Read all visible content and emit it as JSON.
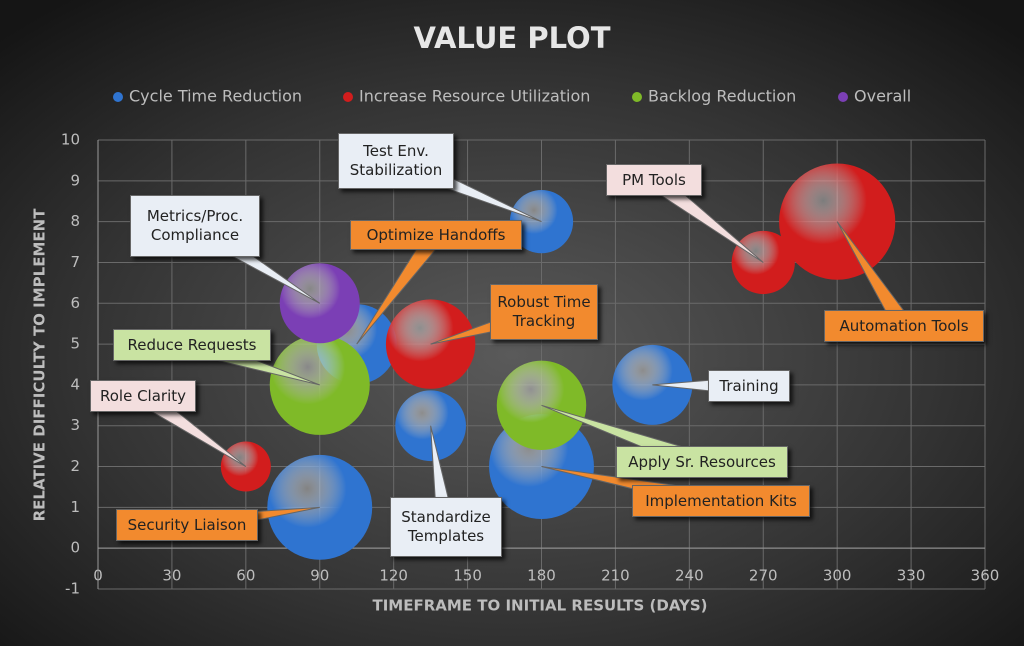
{
  "chart_data": {
    "type": "bubble",
    "title": "VALUE PLOT",
    "x_label": "TIMEFRAME TO INITIAL RESULTS (DAYS)",
    "y_label": "RELATIVE DIFFICULTY TO IMPLEMENT",
    "xlim": [
      0,
      360
    ],
    "xticks": [
      0,
      30,
      60,
      90,
      120,
      150,
      180,
      210,
      240,
      270,
      300,
      330,
      360
    ],
    "ylim": [
      -1,
      10
    ],
    "yticks": [
      -1,
      0,
      1,
      2,
      3,
      4,
      5,
      6,
      7,
      8,
      9,
      10
    ],
    "grid": true,
    "legend": "top",
    "series": [
      {
        "name": "Cycle Time Reduction",
        "color": "#2f74d0",
        "x": [
          180,
          105,
          225,
          135,
          180,
          90
        ],
        "values": [
          8,
          5,
          4,
          3,
          2,
          1
        ],
        "sizes": [
          40,
          64,
          64,
          50,
          110,
          110
        ],
        "labels": [
          "Test Env. Stabilization",
          "Optimize Handoffs",
          "Training",
          "Standardize Templates",
          "Implementation Kits",
          "Security Liaison"
        ]
      },
      {
        "name": "Increase Resource Utilization",
        "color": "#d21d1d",
        "x": [
          270,
          300,
          135,
          60
        ],
        "values": [
          7,
          8,
          5,
          2
        ],
        "sizes": [
          40,
          135,
          80,
          25
        ],
        "labels": [
          "PM Tools",
          "Automation Tools",
          "Robust Time Tracking",
          "Role Clarity"
        ]
      },
      {
        "name": "Backlog Reduction",
        "color": "#7fba28",
        "x": [
          90,
          180
        ],
        "values": [
          4,
          3.5
        ],
        "sizes": [
          100,
          80
        ],
        "labels": [
          "Reduce Requests",
          "Apply Sr. Resources"
        ]
      },
      {
        "name": "Overall",
        "color": "#7b3fb5",
        "x": [
          90
        ],
        "values": [
          6
        ],
        "sizes": [
          64
        ],
        "labels": [
          "Metrics/Proc. Compliance"
        ]
      }
    ]
  }
}
